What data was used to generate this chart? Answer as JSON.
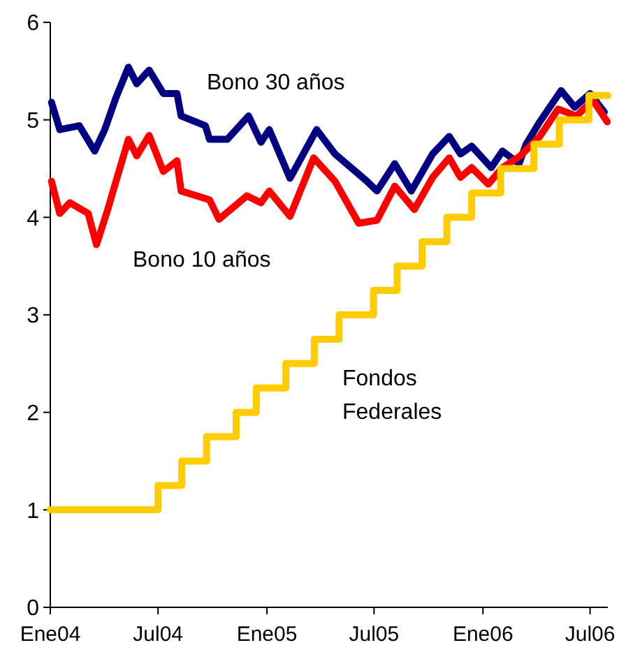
{
  "chart_data": {
    "type": "line",
    "xlim": [
      "2004-01-01",
      "2006-07-31"
    ],
    "ylim": [
      0,
      6
    ],
    "yticks": [
      0,
      1,
      2,
      3,
      4,
      5,
      6
    ],
    "xticks": [
      {
        "value": "2004-01-01",
        "label": "Ene04"
      },
      {
        "value": "2004-07-01",
        "label": "Jul04"
      },
      {
        "value": "2005-01-01",
        "label": "Ene05"
      },
      {
        "value": "2005-07-01",
        "label": "Jul05"
      },
      {
        "value": "2006-01-01",
        "label": "Ene06"
      },
      {
        "value": "2006-07-01",
        "label": "Jul06"
      }
    ],
    "grid": false,
    "series": [
      {
        "name": "Bono 30 años",
        "color": "#000080",
        "x": [
          "2004-01-03",
          "2004-01-17",
          "2004-02-19",
          "2004-03-16",
          "2004-04-02",
          "2004-04-21",
          "2004-05-12",
          "2004-05-26",
          "2004-06-16",
          "2004-07-10",
          "2004-08-02",
          "2004-08-09",
          "2004-09-19",
          "2004-09-26",
          "2004-10-26",
          "2004-12-01",
          "2004-12-22",
          "2005-01-05",
          "2005-02-09",
          "2005-03-26",
          "2005-04-26",
          "2005-06-19",
          "2005-07-06",
          "2005-08-05",
          "2005-09-02",
          "2005-10-08",
          "2005-11-05",
          "2005-11-24",
          "2005-12-13",
          "2006-01-15",
          "2006-02-03",
          "2006-03-03",
          "2006-03-15",
          "2006-04-07",
          "2006-05-13",
          "2006-06-05",
          "2006-07-01",
          "2006-07-25"
        ],
        "values": [
          5.18,
          4.9,
          4.94,
          4.68,
          4.9,
          5.23,
          5.54,
          5.37,
          5.51,
          5.27,
          5.27,
          5.04,
          4.94,
          4.8,
          4.8,
          5.04,
          4.77,
          4.9,
          4.4,
          4.9,
          4.65,
          4.37,
          4.27,
          4.55,
          4.27,
          4.65,
          4.83,
          4.65,
          4.73,
          4.51,
          4.68,
          4.55,
          4.75,
          4.98,
          5.3,
          5.13,
          5.27,
          5.08
        ]
      },
      {
        "name": "Bono 10 años",
        "color": "#ff0000",
        "x": [
          "2004-01-03",
          "2004-01-17",
          "2004-02-03",
          "2004-03-05",
          "2004-03-19",
          "2004-04-07",
          "2004-04-21",
          "2004-05-12",
          "2004-05-26",
          "2004-06-16",
          "2004-07-10",
          "2004-08-02",
          "2004-08-09",
          "2004-09-26",
          "2004-10-12",
          "2004-11-28",
          "2004-12-22",
          "2005-01-05",
          "2005-02-09",
          "2005-03-21",
          "2005-04-26",
          "2005-06-05",
          "2005-07-06",
          "2005-08-05",
          "2005-09-07",
          "2005-10-08",
          "2005-11-05",
          "2005-11-24",
          "2005-12-13",
          "2006-01-10",
          "2006-02-03",
          "2006-03-05",
          "2006-04-07",
          "2006-05-08",
          "2006-06-08",
          "2006-07-06",
          "2006-07-30"
        ],
        "values": [
          4.37,
          4.04,
          4.15,
          4.04,
          3.72,
          4.08,
          4.37,
          4.8,
          4.63,
          4.84,
          4.47,
          4.58,
          4.27,
          4.18,
          3.98,
          4.22,
          4.15,
          4.27,
          4.01,
          4.61,
          4.37,
          3.94,
          3.97,
          4.32,
          4.08,
          4.41,
          4.61,
          4.41,
          4.51,
          4.34,
          4.51,
          4.63,
          4.83,
          5.11,
          5.04,
          5.2,
          4.98
        ]
      },
      {
        "name": "Fondos\nFederales",
        "color": "#ffcc00",
        "type": "step",
        "x": [
          "2004-01-01",
          "2004-07-01",
          "2004-08-10",
          "2004-09-21",
          "2004-11-10",
          "2004-12-14",
          "2005-02-02",
          "2005-03-22",
          "2005-05-03",
          "2005-06-30",
          "2005-08-09",
          "2005-09-20",
          "2005-11-01",
          "2005-12-13",
          "2006-01-31",
          "2006-03-28",
          "2006-05-10",
          "2006-06-29",
          "2006-07-31"
        ],
        "values": [
          1,
          1.25,
          1.5,
          1.75,
          2,
          2.25,
          2.5,
          2.75,
          3,
          3.25,
          3.5,
          3.75,
          4,
          4.25,
          4.5,
          4.75,
          5,
          5.25,
          5.25
        ]
      }
    ]
  }
}
